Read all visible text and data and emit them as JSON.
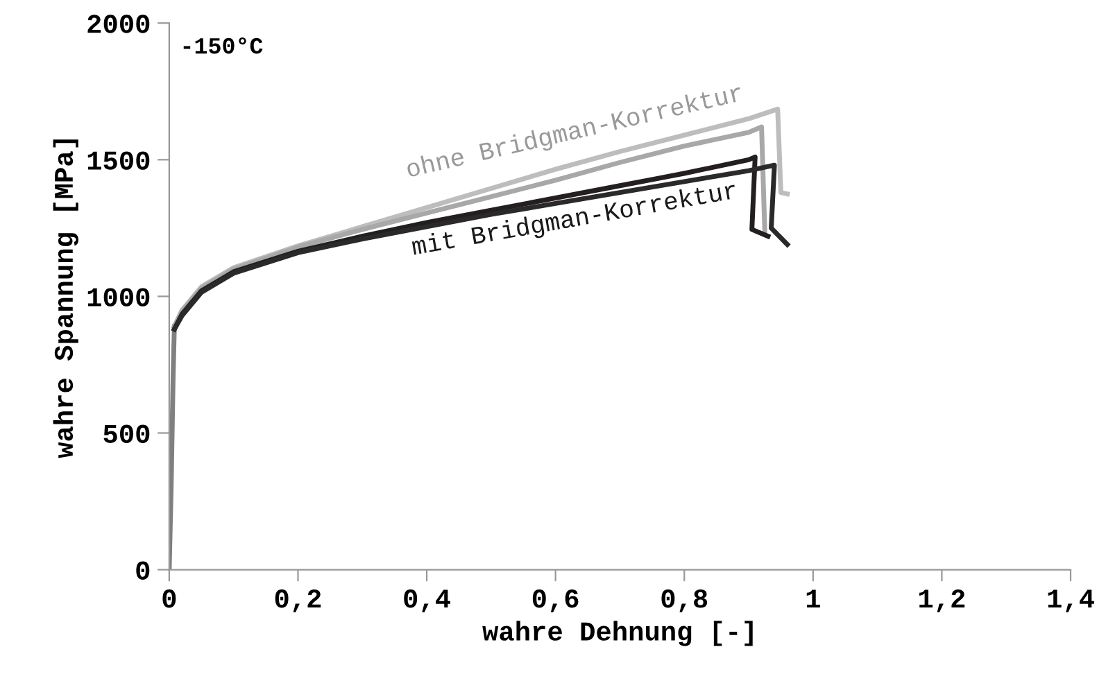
{
  "chart_data": {
    "type": "line",
    "xlabel": "wahre Dehnung [-]",
    "ylabel": "wahre Spannung [MPa]",
    "xlim": [
      0,
      1.4
    ],
    "ylim": [
      0,
      2000
    ],
    "xticks": [
      0,
      {
        "value": 0.2,
        "label": "0,2"
      },
      {
        "value": 0.4,
        "label": "0,4"
      },
      {
        "value": 0.6,
        "label": "0,6"
      },
      {
        "value": 0.8,
        "label": "0,8"
      },
      1,
      {
        "value": 1.2,
        "label": "1,2"
      },
      {
        "value": 1.4,
        "label": "1,4"
      }
    ],
    "yticks": [
      0,
      500,
      1000,
      1500,
      2000
    ],
    "grid": false,
    "legend": false,
    "marker": "none",
    "line_style": "solid",
    "annotations": [
      "-150°C",
      "ohne Bridgman-Korrektur",
      "mit Bridgman-Korrektur"
    ],
    "series": [
      {
        "color": "#808080",
        "x": [
          0,
          0.003,
          0.006,
          0.008
        ],
        "values": [
          0,
          300,
          700,
          890
        ]
      },
      {
        "color": "#bdbdbd",
        "x": [
          0.008,
          0.02,
          0.05,
          0.1,
          0.2,
          0.3,
          0.4,
          0.5,
          0.6,
          0.7,
          0.8,
          0.9,
          0.945,
          0.95,
          0.96
        ],
        "values": [
          890,
          950,
          1035,
          1105,
          1185,
          1255,
          1325,
          1395,
          1465,
          1530,
          1590,
          1650,
          1685,
          1380,
          1375
        ]
      },
      {
        "color": "#a8a8a8",
        "x": [
          0.008,
          0.02,
          0.05,
          0.1,
          0.2,
          0.3,
          0.4,
          0.5,
          0.6,
          0.7,
          0.8,
          0.9,
          0.92,
          0.925
        ],
        "values": [
          890,
          945,
          1030,
          1100,
          1180,
          1245,
          1305,
          1365,
          1425,
          1490,
          1550,
          1600,
          1620,
          1240
        ]
      },
      {
        "color": "#231f20",
        "x": [
          0.008,
          0.02,
          0.05,
          0.1,
          0.2,
          0.3,
          0.4,
          0.5,
          0.6,
          0.7,
          0.8,
          0.9,
          0.91,
          0.905,
          0.93
        ],
        "values": [
          880,
          935,
          1020,
          1090,
          1165,
          1220,
          1270,
          1315,
          1360,
          1405,
          1450,
          1500,
          1510,
          1245,
          1220
        ]
      },
      {
        "color": "#2a2a2a",
        "x": [
          0.008,
          0.02,
          0.05,
          0.1,
          0.2,
          0.3,
          0.4,
          0.5,
          0.6,
          0.7,
          0.8,
          0.9,
          0.94,
          0.935,
          0.96
        ],
        "values": [
          880,
          930,
          1015,
          1085,
          1160,
          1210,
          1255,
          1300,
          1340,
          1380,
          1420,
          1460,
          1480,
          1250,
          1190
        ]
      }
    ]
  }
}
